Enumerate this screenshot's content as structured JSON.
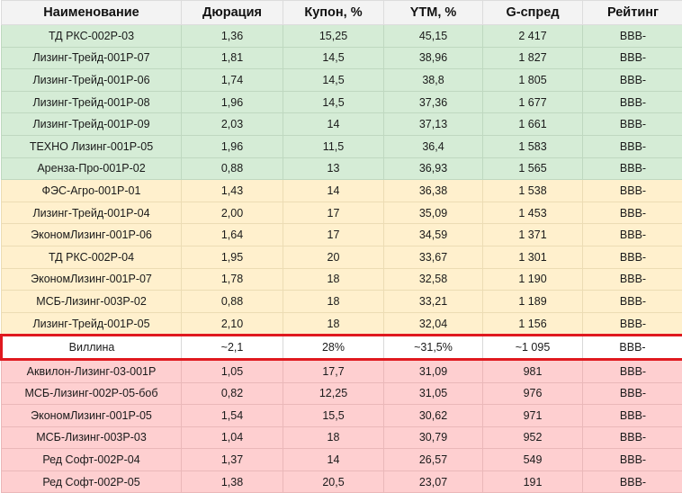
{
  "table": {
    "headers": [
      "Наименование",
      "Дюрация",
      "Купон, %",
      "YTM, %",
      "G-спред",
      "Рейтинг"
    ],
    "colors": {
      "header_bg": "#f3f3f3",
      "green": "#d5ecd6",
      "yellow": "#fff0cd",
      "red": "#fecfd0",
      "highlight_border": "#e0191f"
    },
    "rows": [
      {
        "group": "green",
        "name": "ТД РКС-002Р-03",
        "duration": "1,36",
        "coupon": "15,25",
        "ytm": "45,15",
        "gspread": "2 417",
        "rating": "BBB-"
      },
      {
        "group": "green",
        "name": "Лизинг-Трейд-001Р-07",
        "duration": "1,81",
        "coupon": "14,5",
        "ytm": "38,96",
        "gspread": "1 827",
        "rating": "BBB-"
      },
      {
        "group": "green",
        "name": "Лизинг-Трейд-001Р-06",
        "duration": "1,74",
        "coupon": "14,5",
        "ytm": "38,8",
        "gspread": "1 805",
        "rating": "BBB-"
      },
      {
        "group": "green",
        "name": "Лизинг-Трейд-001Р-08",
        "duration": "1,96",
        "coupon": "14,5",
        "ytm": "37,36",
        "gspread": "1 677",
        "rating": "BBB-"
      },
      {
        "group": "green",
        "name": "Лизинг-Трейд-001Р-09",
        "duration": "2,03",
        "coupon": "14",
        "ytm": "37,13",
        "gspread": "1 661",
        "rating": "BBB-"
      },
      {
        "group": "green",
        "name": "ТЕХНО Лизинг-001Р-05",
        "duration": "1,96",
        "coupon": "11,5",
        "ytm": "36,4",
        "gspread": "1 583",
        "rating": "BBB-"
      },
      {
        "group": "green",
        "name": "Аренза-Про-001Р-02",
        "duration": "0,88",
        "coupon": "13",
        "ytm": "36,93",
        "gspread": "1 565",
        "rating": "BBB-"
      },
      {
        "group": "yellow",
        "name": "ФЭС-Агро-001Р-01",
        "duration": "1,43",
        "coupon": "14",
        "ytm": "36,38",
        "gspread": "1 538",
        "rating": "BBB-"
      },
      {
        "group": "yellow",
        "name": "Лизинг-Трейд-001Р-04",
        "duration": "2,00",
        "coupon": "17",
        "ytm": "35,09",
        "gspread": "1 453",
        "rating": "BBB-"
      },
      {
        "group": "yellow",
        "name": "ЭкономЛизинг-001Р-06",
        "duration": "1,64",
        "coupon": "17",
        "ytm": "34,59",
        "gspread": "1 371",
        "rating": "BBB-"
      },
      {
        "group": "yellow",
        "name": "ТД РКС-002Р-04",
        "duration": "1,95",
        "coupon": "20",
        "ytm": "33,67",
        "gspread": "1 301",
        "rating": "BBB-"
      },
      {
        "group": "yellow",
        "name": "ЭкономЛизинг-001Р-07",
        "duration": "1,78",
        "coupon": "18",
        "ytm": "32,58",
        "gspread": "1 190",
        "rating": "BBB-"
      },
      {
        "group": "yellow",
        "name": "МСБ-Лизинг-003Р-02",
        "duration": "0,88",
        "coupon": "18",
        "ytm": "33,21",
        "gspread": "1 189",
        "rating": "BBB-"
      },
      {
        "group": "yellow",
        "name": "Лизинг-Трейд-001Р-05",
        "duration": "2,10",
        "coupon": "18",
        "ytm": "32,04",
        "gspread": "1 156",
        "rating": "BBB-"
      },
      {
        "group": "highlight",
        "name": "Виллина",
        "duration": "~2,1",
        "coupon": "28%",
        "ytm": "~31,5%",
        "gspread": "~1 095",
        "rating": "BBB-"
      },
      {
        "group": "red",
        "name": "Аквилон-Лизинг-03-001Р",
        "duration": "1,05",
        "coupon": "17,7",
        "ytm": "31,09",
        "gspread": "981",
        "rating": "BBB-"
      },
      {
        "group": "red",
        "name": "МСБ-Лизинг-002Р-05-боб",
        "duration": "0,82",
        "coupon": "12,25",
        "ytm": "31,05",
        "gspread": "976",
        "rating": "BBB-"
      },
      {
        "group": "red",
        "name": "ЭкономЛизинг-001Р-05",
        "duration": "1,54",
        "coupon": "15,5",
        "ytm": "30,62",
        "gspread": "971",
        "rating": "BBB-"
      },
      {
        "group": "red",
        "name": "МСБ-Лизинг-003Р-03",
        "duration": "1,04",
        "coupon": "18",
        "ytm": "30,79",
        "gspread": "952",
        "rating": "BBB-"
      },
      {
        "group": "red",
        "name": "Ред Софт-002Р-04",
        "duration": "1,37",
        "coupon": "14",
        "ytm": "26,57",
        "gspread": "549",
        "rating": "BBB-"
      },
      {
        "group": "red",
        "name": "Ред Софт-002Р-05",
        "duration": "1,38",
        "coupon": "20,5",
        "ytm": "23,07",
        "gspread": "191",
        "rating": "BBB-"
      }
    ]
  }
}
